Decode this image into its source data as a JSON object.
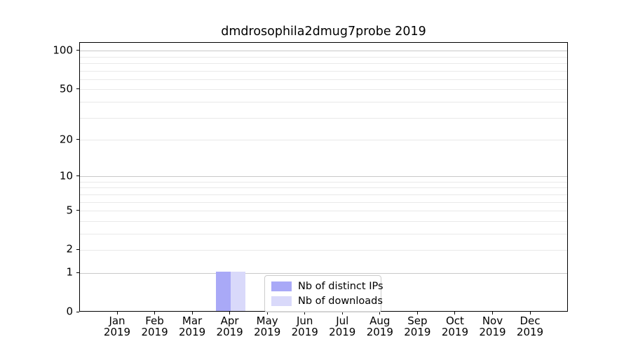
{
  "chart_data": {
    "type": "bar",
    "title": "dmdrosophila2dmug7probe 2019",
    "x": {
      "months": [
        "Jan",
        "Feb",
        "Mar",
        "Apr",
        "May",
        "Jun",
        "Jul",
        "Aug",
        "Sep",
        "Oct",
        "Nov",
        "Dec"
      ],
      "year": "2019"
    },
    "series": [
      {
        "name": "Nb of distinct IPs",
        "color": "#a9a9f7",
        "values": [
          0,
          0,
          0,
          1,
          0,
          0,
          0,
          0,
          0,
          0,
          0,
          0
        ]
      },
      {
        "name": "Nb of downloads",
        "color": "#d9d9fa",
        "values": [
          0,
          0,
          0,
          1,
          0,
          0,
          0,
          0,
          0,
          0,
          0,
          0
        ]
      }
    ],
    "y_axis": {
      "scale": "log1p",
      "tick_values": [
        0,
        1,
        2,
        5,
        10,
        20,
        50,
        100
      ],
      "major_gridlines": [
        1,
        10,
        100
      ],
      "minor_gridlines": [
        2,
        3,
        4,
        5,
        6,
        7,
        8,
        9,
        20,
        30,
        40,
        50,
        60,
        70,
        80,
        90
      ],
      "max": 116
    },
    "legend": {
      "position": "lower center"
    },
    "colors": {
      "major_grid": "#c9c9c9",
      "minor_grid": "#e9e9e9",
      "spine": "#000000",
      "legend_border": "#cccccc",
      "grid_on": true
    }
  }
}
